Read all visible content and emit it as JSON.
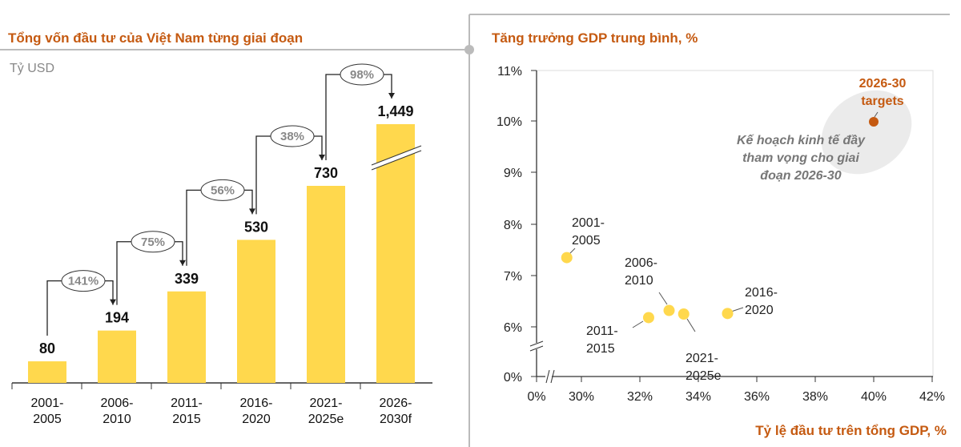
{
  "colors": {
    "bar": "#ffd84d",
    "accent": "#c55a11",
    "point": "#ffd84d",
    "target_point": "#c55a11",
    "note_bg": "#ebebeb"
  },
  "chart_data": [
    {
      "type": "bar",
      "title": "Tổng vốn đầu tư của Việt Nam từng giai đoạn",
      "unit": "Tỷ USD",
      "categories": [
        [
          "2001-",
          "2005"
        ],
        [
          "2006-",
          "2010"
        ],
        [
          "2011-",
          "2015"
        ],
        [
          "2016-",
          "2020"
        ],
        [
          "2021-",
          "2025e"
        ],
        [
          "2026-",
          "2030f"
        ]
      ],
      "values": [
        80,
        194,
        339,
        530,
        730,
        1449
      ],
      "value_labels": [
        "80",
        "194",
        "339",
        "530",
        "730",
        "1,449"
      ],
      "growth_labels": [
        "141%",
        "75%",
        "56%",
        "38%",
        "98%"
      ],
      "broken_axis_bar": 5
    },
    {
      "type": "scatter",
      "title": "Tăng trưởng GDP trung bình, %",
      "xlabel": "Tỷ lệ đầu tư trên tổng GDP, %",
      "x_ticks": [
        "0%",
        "30%",
        "32%",
        "34%",
        "36%",
        "38%",
        "40%",
        "42%"
      ],
      "y_ticks": [
        "11%",
        "10%",
        "9%",
        "8%",
        "7%",
        "6%",
        "0%"
      ],
      "xlim": [
        29,
        42
      ],
      "ylim": [
        5.5,
        11
      ],
      "axis_breaks": true,
      "points": [
        {
          "label": [
            "2001-",
            "2005"
          ],
          "x": 29.5,
          "y": 7.35
        },
        {
          "label": [
            "2006-",
            "2010"
          ],
          "x": 33.0,
          "y": 6.32
        },
        {
          "label": [
            "2011-",
            "2015"
          ],
          "x": 32.3,
          "y": 6.18
        },
        {
          "label": [
            "2016-",
            "2020"
          ],
          "x": 35.0,
          "y": 6.26
        },
        {
          "label": [
            "2021-",
            "2025e"
          ],
          "x": 33.5,
          "y": 6.25
        },
        {
          "label": [
            "2026-30",
            "targets"
          ],
          "x": 40.0,
          "y": 10.0,
          "target": true
        }
      ],
      "annotation": [
        "Kế hoạch kinh tế đầy",
        "tham vọng cho giai",
        "đoạn 2026-30"
      ]
    }
  ]
}
